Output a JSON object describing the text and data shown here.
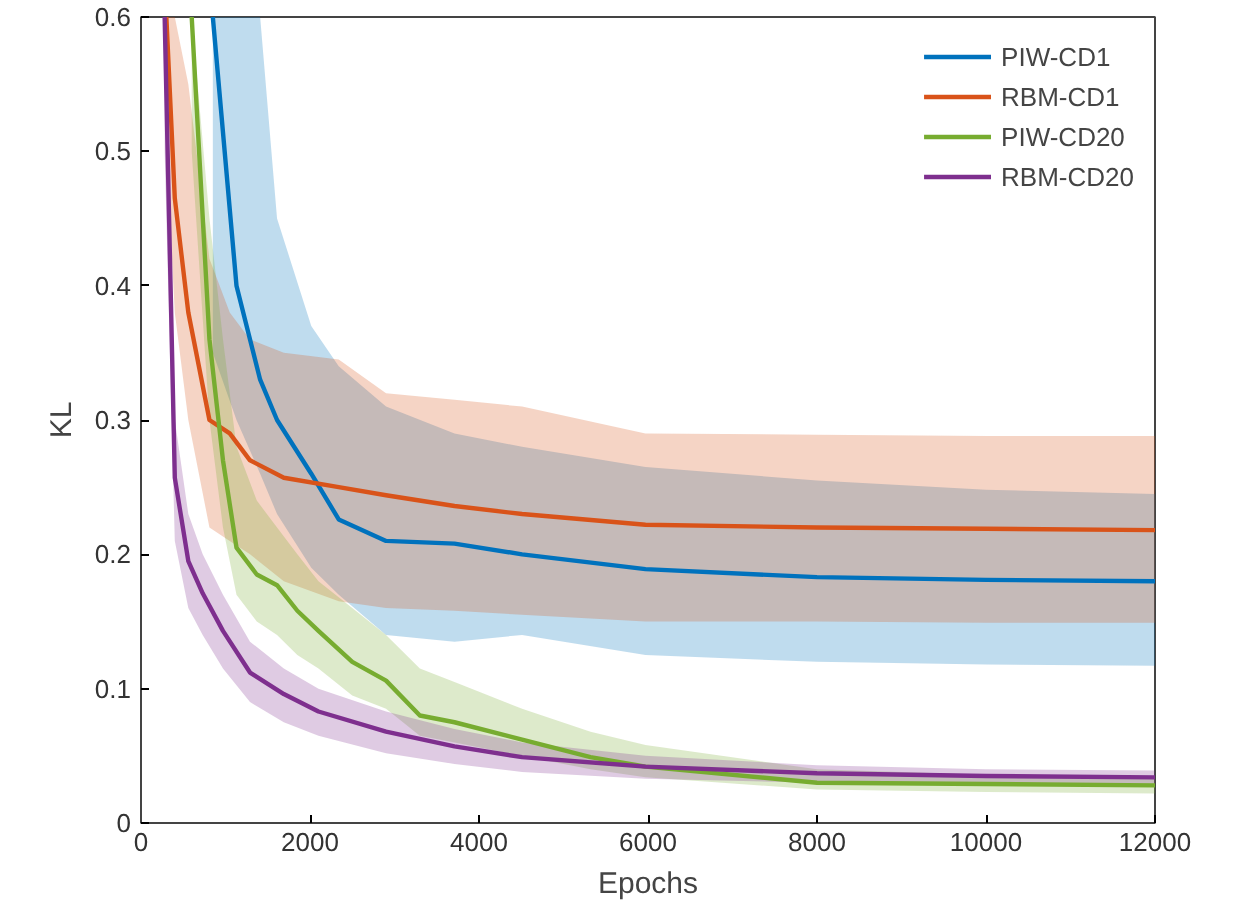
{
  "chart_data": {
    "type": "line",
    "xlabel": "Epochs",
    "ylabel": "KL",
    "xlim": [
      0,
      12000
    ],
    "ylim": [
      0,
      0.6
    ],
    "xticks": [
      0,
      2000,
      4000,
      6000,
      8000,
      10000,
      12000
    ],
    "yticks": [
      0,
      {
        "value": 0.1,
        "label": "0.1"
      },
      {
        "value": 0.2,
        "label": "0.2"
      },
      {
        "value": 0.3,
        "label": "0.3"
      },
      {
        "value": 0.4,
        "label": "0.4"
      },
      {
        "value": 0.5,
        "label": "0.5"
      },
      {
        "value": 0.6,
        "label": "0.6"
      }
    ],
    "grid": false,
    "legend": "top right",
    "series": [
      {
        "name": "PIW-CD1",
        "color": "#0072bd",
        "x": [
          850,
          1130,
          1410,
          1610,
          2015,
          2340,
          2900,
          3710,
          4510,
          5970,
          8000,
          10000,
          12000
        ],
        "values": [
          0.6,
          0.4,
          0.33,
          0.3,
          0.26,
          0.226,
          0.21,
          0.208,
          0.2,
          0.189,
          0.183,
          0.181,
          0.18
        ],
        "upper": [
          0.6,
          0.6,
          0.6,
          0.45,
          0.37,
          0.34,
          0.31,
          0.29,
          0.28,
          0.265,
          0.255,
          0.248,
          0.245
        ],
        "lower": [
          0.35,
          0.3,
          0.26,
          0.23,
          0.19,
          0.17,
          0.14,
          0.135,
          0.14,
          0.125,
          0.12,
          0.118,
          0.117
        ]
      },
      {
        "name": "RBM-CD1",
        "color": "#d95319",
        "x": [
          300,
          400,
          560,
          810,
          1050,
          1290,
          1690,
          2340,
          2900,
          3710,
          4510,
          5970,
          8000,
          10000,
          12000
        ],
        "values": [
          0.6,
          0.465,
          0.38,
          0.3,
          0.29,
          0.27,
          0.257,
          0.25,
          0.244,
          0.236,
          0.23,
          0.222,
          0.22,
          0.219,
          0.218
        ],
        "upper": [
          0.6,
          0.6,
          0.55,
          0.42,
          0.38,
          0.36,
          0.35,
          0.345,
          0.32,
          0.315,
          0.31,
          0.29,
          0.289,
          0.288,
          0.288
        ],
        "lower": [
          0.5,
          0.38,
          0.3,
          0.22,
          0.21,
          0.2,
          0.18,
          0.165,
          0.16,
          0.158,
          0.155,
          0.15,
          0.15,
          0.149,
          0.149
        ]
      },
      {
        "name": "PIW-CD20",
        "color": "#77ac30",
        "x": [
          600,
          810,
          970,
          1130,
          1370,
          1610,
          1850,
          2100,
          2500,
          2900,
          3300,
          3710,
          4510,
          5320,
          5970,
          8000,
          10000,
          12000
        ],
        "values": [
          0.6,
          0.36,
          0.27,
          0.205,
          0.185,
          0.177,
          0.158,
          0.143,
          0.12,
          0.106,
          0.08,
          0.075,
          0.062,
          0.049,
          0.042,
          0.03,
          0.029,
          0.028
        ],
        "upper": [
          0.6,
          0.45,
          0.36,
          0.28,
          0.24,
          0.22,
          0.2,
          0.18,
          0.16,
          0.14,
          0.115,
          0.105,
          0.085,
          0.068,
          0.058,
          0.04,
          0.036,
          0.035
        ],
        "lower": [
          0.5,
          0.3,
          0.22,
          0.17,
          0.15,
          0.14,
          0.125,
          0.115,
          0.095,
          0.085,
          0.065,
          0.06,
          0.05,
          0.04,
          0.034,
          0.025,
          0.023,
          0.022
        ]
      },
      {
        "name": "RBM-CD20",
        "color": "#7e2f8e",
        "x": [
          280,
          400,
          560,
          730,
          970,
          1290,
          1690,
          2100,
          2900,
          3710,
          4510,
          5970,
          8000,
          10000,
          12000
        ],
        "values": [
          0.6,
          0.257,
          0.195,
          0.171,
          0.143,
          0.112,
          0.096,
          0.083,
          0.068,
          0.057,
          0.049,
          0.042,
          0.037,
          0.035,
          0.034
        ],
        "upper": [
          0.6,
          0.3,
          0.23,
          0.2,
          0.17,
          0.135,
          0.115,
          0.1,
          0.083,
          0.07,
          0.06,
          0.05,
          0.043,
          0.04,
          0.039
        ],
        "lower": [
          0.5,
          0.21,
          0.16,
          0.14,
          0.115,
          0.09,
          0.075,
          0.065,
          0.052,
          0.044,
          0.038,
          0.033,
          0.03,
          0.029,
          0.029
        ]
      }
    ]
  }
}
